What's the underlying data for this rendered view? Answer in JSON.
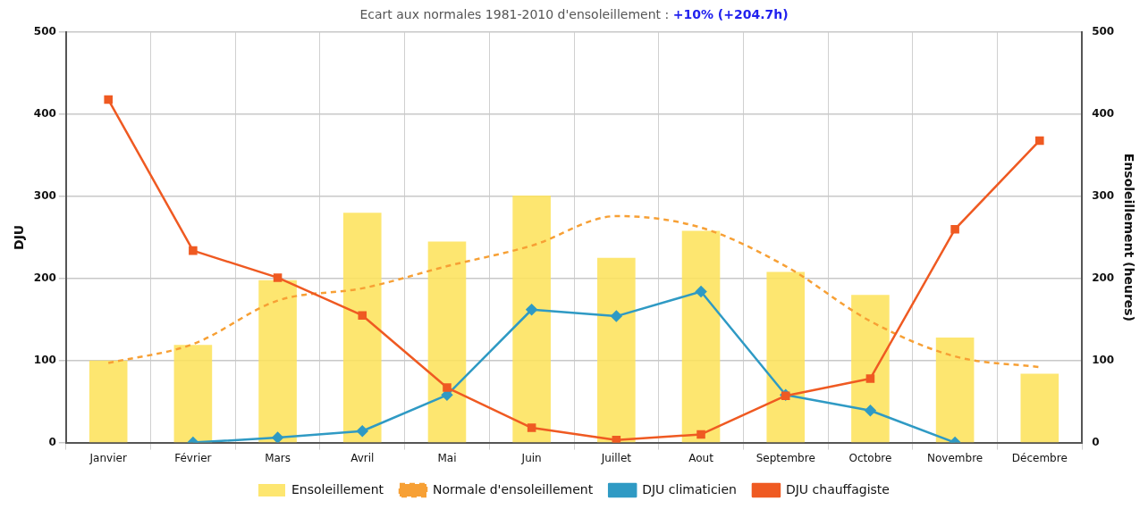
{
  "chart_data": {
    "type": "bar",
    "title": "Ecart aux normales 1981-2010 d'ensoleillement :",
    "subtitle": "+10% (+204.7h)",
    "ylabel": "DJU",
    "y2label": "Ensoleillement (heures)",
    "categories": [
      "Janvier",
      "Février",
      "Mars",
      "Avril",
      "Mai",
      "Juin",
      "Juillet",
      "Aout",
      "Septembre",
      "Octobre",
      "Novembre",
      "Décembre"
    ],
    "series": [
      {
        "name": "Ensoleillement",
        "axis": "y2",
        "color": "#fde25a",
        "values": [
          100,
          119,
          198,
          280,
          245,
          301,
          225,
          258,
          208,
          180,
          128,
          84
        ]
      },
      {
        "name": "Normale d'ensoleillement",
        "type": "line",
        "axis": "y2",
        "color": "#f7a035",
        "line_style": "dashed",
        "marker": "none",
        "values": [
          97,
          120,
          173,
          188,
          215,
          240,
          276,
          262,
          215,
          148,
          105,
          92
        ]
      },
      {
        "name": "DJU climaticien",
        "type": "line",
        "color": "#2f9ac4",
        "line_style": "solid",
        "marker": "diamond",
        "values": [
          null,
          0,
          6,
          14,
          58,
          162,
          154,
          184,
          58,
          39,
          0,
          null
        ]
      },
      {
        "name": "DJU chauffagiste",
        "type": "line",
        "color": "#ef5a22",
        "line_style": "solid",
        "marker": "square",
        "values": [
          418,
          234,
          201,
          155,
          67,
          18,
          3,
          10,
          57,
          78,
          260,
          368
        ]
      }
    ],
    "ylim": [
      0,
      500
    ],
    "yticks": [
      0,
      100,
      200,
      300,
      400,
      500
    ],
    "y2lim": [
      0,
      500
    ],
    "y2ticks": [
      0,
      100,
      200,
      300,
      400,
      500
    ],
    "grid": true,
    "legend": "bottom"
  }
}
